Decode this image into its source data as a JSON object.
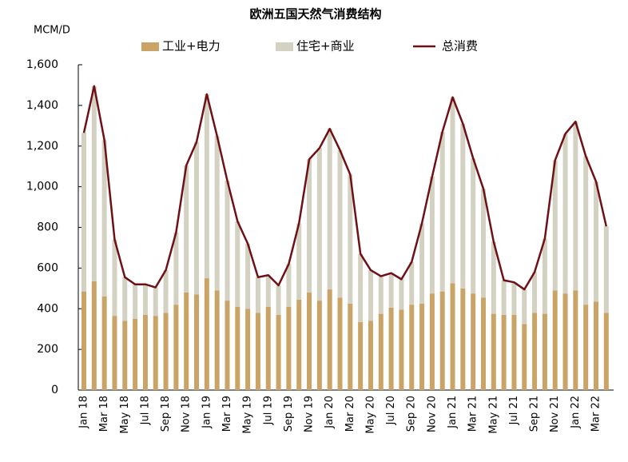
{
  "chart_data": {
    "type": "bar",
    "stacked": true,
    "title": "欧洲五国天然气消费结构",
    "y_label": "MCM/D",
    "categories": [
      "Jan 18",
      null,
      "Mar 18",
      null,
      "May 18",
      null,
      "Jul 18",
      null,
      "Sep 18",
      null,
      "Nov 18",
      null,
      "Jan 19",
      null,
      "Mar 19",
      null,
      "May 19",
      null,
      "Jul 19",
      null,
      "Sep 19",
      null,
      "Nov 19",
      null,
      "Jan 20",
      null,
      "Mar 20",
      null,
      "May 20",
      null,
      "Jul 20",
      null,
      "Sep 20",
      null,
      "Nov 20",
      null,
      "Jan 21",
      null,
      "Mar 21",
      null,
      "May 21",
      null,
      "Jul 21",
      null,
      "Sep 21",
      null,
      "Nov 21",
      null,
      "Jan 22",
      null,
      "Mar 22",
      null
    ],
    "series": [
      {
        "name": "工业+电力",
        "type": "bar",
        "color": "#c9a466",
        "values": [
          485,
          535,
          460,
          365,
          340,
          350,
          370,
          365,
          380,
          420,
          480,
          470,
          550,
          490,
          440,
          410,
          400,
          380,
          410,
          370,
          410,
          445,
          480,
          440,
          495,
          455,
          425,
          335,
          340,
          375,
          405,
          395,
          420,
          425,
          475,
          485,
          525,
          500,
          475,
          455,
          375,
          370,
          370,
          325,
          380,
          375,
          490,
          475,
          490,
          420,
          435,
          380
        ]
      },
      {
        "name": "住宅+商业",
        "type": "bar",
        "color": "#d3d1c2",
        "values": [
          780,
          960,
          770,
          375,
          215,
          170,
          150,
          140,
          210,
          355,
          625,
          750,
          905,
          760,
          590,
          420,
          320,
          175,
          155,
          145,
          210,
          375,
          655,
          750,
          790,
          725,
          635,
          335,
          250,
          185,
          170,
          150,
          210,
          395,
          575,
          785,
          915,
          810,
          665,
          535,
          355,
          170,
          160,
          170,
          200,
          370,
          640,
          785,
          830,
          730,
          590,
          425
        ]
      },
      {
        "name": "总消费",
        "type": "line",
        "color": "#6e1016",
        "values": [
          1265,
          1495,
          1230,
          740,
          555,
          520,
          520,
          505,
          590,
          775,
          1105,
          1220,
          1455,
          1250,
          1030,
          830,
          720,
          555,
          565,
          515,
          620,
          820,
          1135,
          1190,
          1285,
          1180,
          1060,
          670,
          590,
          560,
          575,
          545,
          630,
          820,
          1050,
          1270,
          1440,
          1310,
          1140,
          990,
          730,
          540,
          530,
          495,
          580,
          745,
          1130,
          1260,
          1320,
          1150,
          1025,
          805
        ]
      }
    ],
    "ylim": [
      0,
      1600
    ],
    "yticks": [
      0,
      200,
      400,
      600,
      800,
      {
        "value": 1000,
        "label": "1,000"
      },
      {
        "value": 1200,
        "label": "1,200"
      },
      {
        "value": 1400,
        "label": "1,400"
      },
      {
        "value": 1600,
        "label": "1,600"
      }
    ],
    "grid": false,
    "legend": "top"
  }
}
